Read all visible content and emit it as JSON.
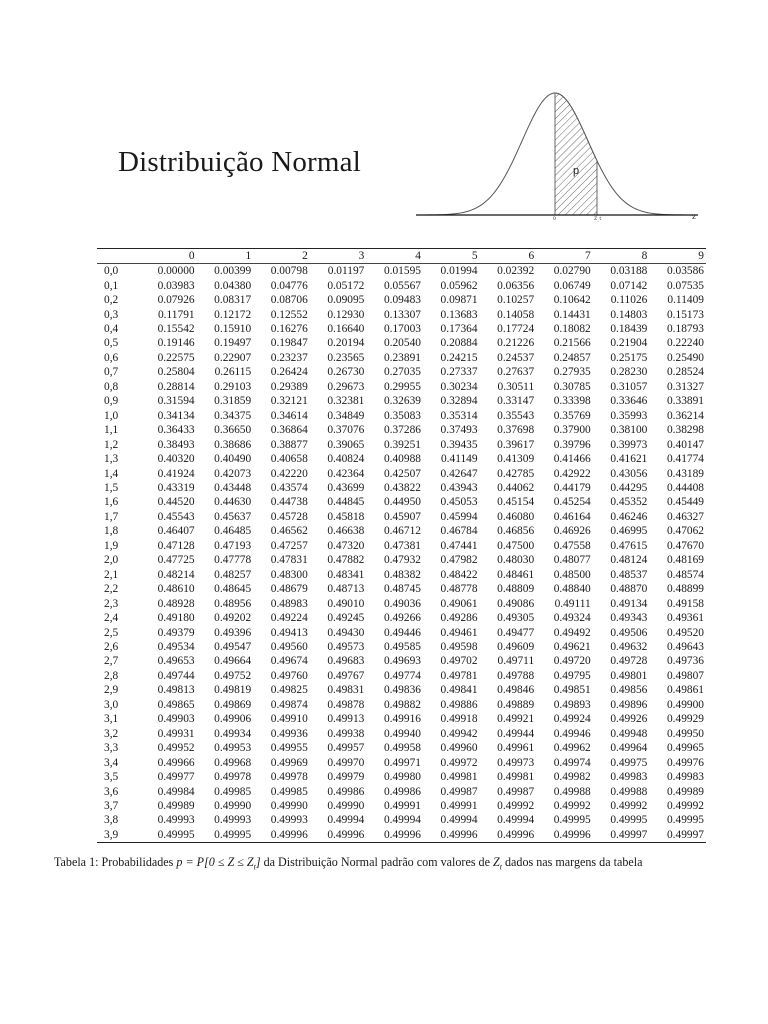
{
  "title": "Distribuição Normal",
  "figure": {
    "shaded_label": "p",
    "x_origin_label": "0",
    "x_t_label": "Z_t",
    "axis_label": "z"
  },
  "table": {
    "columns": [
      "0",
      "1",
      "2",
      "3",
      "4",
      "5",
      "6",
      "7",
      "8",
      "9"
    ],
    "rows": [
      {
        "z": "0,0",
        "v": [
          "0.00000",
          "0.00399",
          "0.00798",
          "0.01197",
          "0.01595",
          "0.01994",
          "0.02392",
          "0.02790",
          "0.03188",
          "0.03586"
        ]
      },
      {
        "z": "0,1",
        "v": [
          "0.03983",
          "0.04380",
          "0.04776",
          "0.05172",
          "0.05567",
          "0.05962",
          "0.06356",
          "0.06749",
          "0.07142",
          "0.07535"
        ]
      },
      {
        "z": "0,2",
        "v": [
          "0.07926",
          "0.08317",
          "0.08706",
          "0.09095",
          "0.09483",
          "0.09871",
          "0.10257",
          "0.10642",
          "0.11026",
          "0.11409"
        ]
      },
      {
        "z": "0,3",
        "v": [
          "0.11791",
          "0.12172",
          "0.12552",
          "0.12930",
          "0.13307",
          "0.13683",
          "0.14058",
          "0.14431",
          "0.14803",
          "0.15173"
        ]
      },
      {
        "z": "0,4",
        "v": [
          "0.15542",
          "0.15910",
          "0.16276",
          "0.16640",
          "0.17003",
          "0.17364",
          "0.17724",
          "0.18082",
          "0.18439",
          "0.18793"
        ]
      },
      {
        "z": "0,5",
        "v": [
          "0.19146",
          "0.19497",
          "0.19847",
          "0.20194",
          "0.20540",
          "0.20884",
          "0.21226",
          "0.21566",
          "0.21904",
          "0.22240"
        ]
      },
      {
        "z": "0,6",
        "v": [
          "0.22575",
          "0.22907",
          "0.23237",
          "0.23565",
          "0.23891",
          "0.24215",
          "0.24537",
          "0.24857",
          "0.25175",
          "0.25490"
        ]
      },
      {
        "z": "0,7",
        "v": [
          "0.25804",
          "0.26115",
          "0.26424",
          "0.26730",
          "0.27035",
          "0.27337",
          "0.27637",
          "0.27935",
          "0.28230",
          "0.28524"
        ]
      },
      {
        "z": "0,8",
        "v": [
          "0.28814",
          "0.29103",
          "0.29389",
          "0.29673",
          "0.29955",
          "0.30234",
          "0.30511",
          "0.30785",
          "0.31057",
          "0.31327"
        ]
      },
      {
        "z": "0,9",
        "v": [
          "0.31594",
          "0.31859",
          "0.32121",
          "0.32381",
          "0.32639",
          "0.32894",
          "0.33147",
          "0.33398",
          "0.33646",
          "0.33891"
        ]
      },
      {
        "z": "1,0",
        "v": [
          "0.34134",
          "0.34375",
          "0.34614",
          "0.34849",
          "0.35083",
          "0.35314",
          "0.35543",
          "0.35769",
          "0.35993",
          "0.36214"
        ]
      },
      {
        "z": "1,1",
        "v": [
          "0.36433",
          "0.36650",
          "0.36864",
          "0.37076",
          "0.37286",
          "0.37493",
          "0.37698",
          "0.37900",
          "0.38100",
          "0.38298"
        ]
      },
      {
        "z": "1,2",
        "v": [
          "0.38493",
          "0.38686",
          "0.38877",
          "0.39065",
          "0.39251",
          "0.39435",
          "0.39617",
          "0.39796",
          "0.39973",
          "0.40147"
        ]
      },
      {
        "z": "1,3",
        "v": [
          "0.40320",
          "0.40490",
          "0.40658",
          "0.40824",
          "0.40988",
          "0.41149",
          "0.41309",
          "0.41466",
          "0.41621",
          "0.41774"
        ]
      },
      {
        "z": "1,4",
        "v": [
          "0.41924",
          "0.42073",
          "0.42220",
          "0.42364",
          "0.42507",
          "0.42647",
          "0.42785",
          "0.42922",
          "0.43056",
          "0.43189"
        ]
      },
      {
        "z": "1,5",
        "v": [
          "0.43319",
          "0.43448",
          "0.43574",
          "0.43699",
          "0.43822",
          "0.43943",
          "0.44062",
          "0.44179",
          "0.44295",
          "0.44408"
        ]
      },
      {
        "z": "1,6",
        "v": [
          "0.44520",
          "0.44630",
          "0.44738",
          "0.44845",
          "0.44950",
          "0.45053",
          "0.45154",
          "0.45254",
          "0.45352",
          "0.45449"
        ]
      },
      {
        "z": "1,7",
        "v": [
          "0.45543",
          "0.45637",
          "0.45728",
          "0.45818",
          "0.45907",
          "0.45994",
          "0.46080",
          "0.46164",
          "0.46246",
          "0.46327"
        ]
      },
      {
        "z": "1,8",
        "v": [
          "0.46407",
          "0.46485",
          "0.46562",
          "0.46638",
          "0.46712",
          "0.46784",
          "0.46856",
          "0.46926",
          "0.46995",
          "0.47062"
        ]
      },
      {
        "z": "1,9",
        "v": [
          "0.47128",
          "0.47193",
          "0.47257",
          "0.47320",
          "0.47381",
          "0.47441",
          "0.47500",
          "0.47558",
          "0.47615",
          "0.47670"
        ]
      },
      {
        "z": "2,0",
        "v": [
          "0.47725",
          "0.47778",
          "0.47831",
          "0.47882",
          "0.47932",
          "0.47982",
          "0.48030",
          "0.48077",
          "0.48124",
          "0.48169"
        ]
      },
      {
        "z": "2,1",
        "v": [
          "0.48214",
          "0.48257",
          "0.48300",
          "0.48341",
          "0.48382",
          "0.48422",
          "0.48461",
          "0.48500",
          "0.48537",
          "0.48574"
        ]
      },
      {
        "z": "2,2",
        "v": [
          "0.48610",
          "0.48645",
          "0.48679",
          "0.48713",
          "0.48745",
          "0.48778",
          "0.48809",
          "0.48840",
          "0.48870",
          "0.48899"
        ]
      },
      {
        "z": "2,3",
        "v": [
          "0.48928",
          "0.48956",
          "0.48983",
          "0.49010",
          "0.49036",
          "0.49061",
          "0.49086",
          "0.49111",
          "0.49134",
          "0.49158"
        ]
      },
      {
        "z": "2,4",
        "v": [
          "0.49180",
          "0.49202",
          "0.49224",
          "0.49245",
          "0.49266",
          "0.49286",
          "0.49305",
          "0.49324",
          "0.49343",
          "0.49361"
        ]
      },
      {
        "z": "2,5",
        "v": [
          "0.49379",
          "0.49396",
          "0.49413",
          "0.49430",
          "0.49446",
          "0.49461",
          "0.49477",
          "0.49492",
          "0.49506",
          "0.49520"
        ]
      },
      {
        "z": "2,6",
        "v": [
          "0.49534",
          "0.49547",
          "0.49560",
          "0.49573",
          "0.49585",
          "0.49598",
          "0.49609",
          "0.49621",
          "0.49632",
          "0.49643"
        ]
      },
      {
        "z": "2,7",
        "v": [
          "0.49653",
          "0.49664",
          "0.49674",
          "0.49683",
          "0.49693",
          "0.49702",
          "0.49711",
          "0.49720",
          "0.49728",
          "0.49736"
        ]
      },
      {
        "z": "2,8",
        "v": [
          "0.49744",
          "0.49752",
          "0.49760",
          "0.49767",
          "0.49774",
          "0.49781",
          "0.49788",
          "0.49795",
          "0.49801",
          "0.49807"
        ]
      },
      {
        "z": "2,9",
        "v": [
          "0.49813",
          "0.49819",
          "0.49825",
          "0.49831",
          "0.49836",
          "0.49841",
          "0.49846",
          "0.49851",
          "0.49856",
          "0.49861"
        ]
      },
      {
        "z": "3,0",
        "v": [
          "0.49865",
          "0.49869",
          "0.49874",
          "0.49878",
          "0.49882",
          "0.49886",
          "0.49889",
          "0.49893",
          "0.49896",
          "0.49900"
        ]
      },
      {
        "z": "3,1",
        "v": [
          "0.49903",
          "0.49906",
          "0.49910",
          "0.49913",
          "0.49916",
          "0.49918",
          "0.49921",
          "0.49924",
          "0.49926",
          "0.49929"
        ]
      },
      {
        "z": "3,2",
        "v": [
          "0.49931",
          "0.49934",
          "0.49936",
          "0.49938",
          "0.49940",
          "0.49942",
          "0.49944",
          "0.49946",
          "0.49948",
          "0.49950"
        ]
      },
      {
        "z": "3,3",
        "v": [
          "0.49952",
          "0.49953",
          "0.49955",
          "0.49957",
          "0.49958",
          "0.49960",
          "0.49961",
          "0.49962",
          "0.49964",
          "0.49965"
        ]
      },
      {
        "z": "3,4",
        "v": [
          "0.49966",
          "0.49968",
          "0.49969",
          "0.49970",
          "0.49971",
          "0.49972",
          "0.49973",
          "0.49974",
          "0.49975",
          "0.49976"
        ]
      },
      {
        "z": "3,5",
        "v": [
          "0.49977",
          "0.49978",
          "0.49978",
          "0.49979",
          "0.49980",
          "0.49981",
          "0.49981",
          "0.49982",
          "0.49983",
          "0.49983"
        ]
      },
      {
        "z": "3,6",
        "v": [
          "0.49984",
          "0.49985",
          "0.49985",
          "0.49986",
          "0.49986",
          "0.49987",
          "0.49987",
          "0.49988",
          "0.49988",
          "0.49989"
        ]
      },
      {
        "z": "3,7",
        "v": [
          "0.49989",
          "0.49990",
          "0.49990",
          "0.49990",
          "0.49991",
          "0.49991",
          "0.49992",
          "0.49992",
          "0.49992",
          "0.49992"
        ]
      },
      {
        "z": "3,8",
        "v": [
          "0.49993",
          "0.49993",
          "0.49993",
          "0.49994",
          "0.49994",
          "0.49994",
          "0.49994",
          "0.49995",
          "0.49995",
          "0.49995"
        ]
      },
      {
        "z": "3,9",
        "v": [
          "0.49995",
          "0.49995",
          "0.49996",
          "0.49996",
          "0.49996",
          "0.49996",
          "0.49996",
          "0.49996",
          "0.49997",
          "0.49997"
        ]
      }
    ]
  },
  "caption": {
    "prefix": "Tabela 1: Probabilidades ",
    "formula": "p = P[0 ≤ Z ≤ Z",
    "formula_sub": "t",
    "formula_end": "]",
    "middle": " da Distribuição Normal padrão com valores de ",
    "var": "Z",
    "var_sub": "t",
    "suffix": " dados nas margens da tabela"
  }
}
